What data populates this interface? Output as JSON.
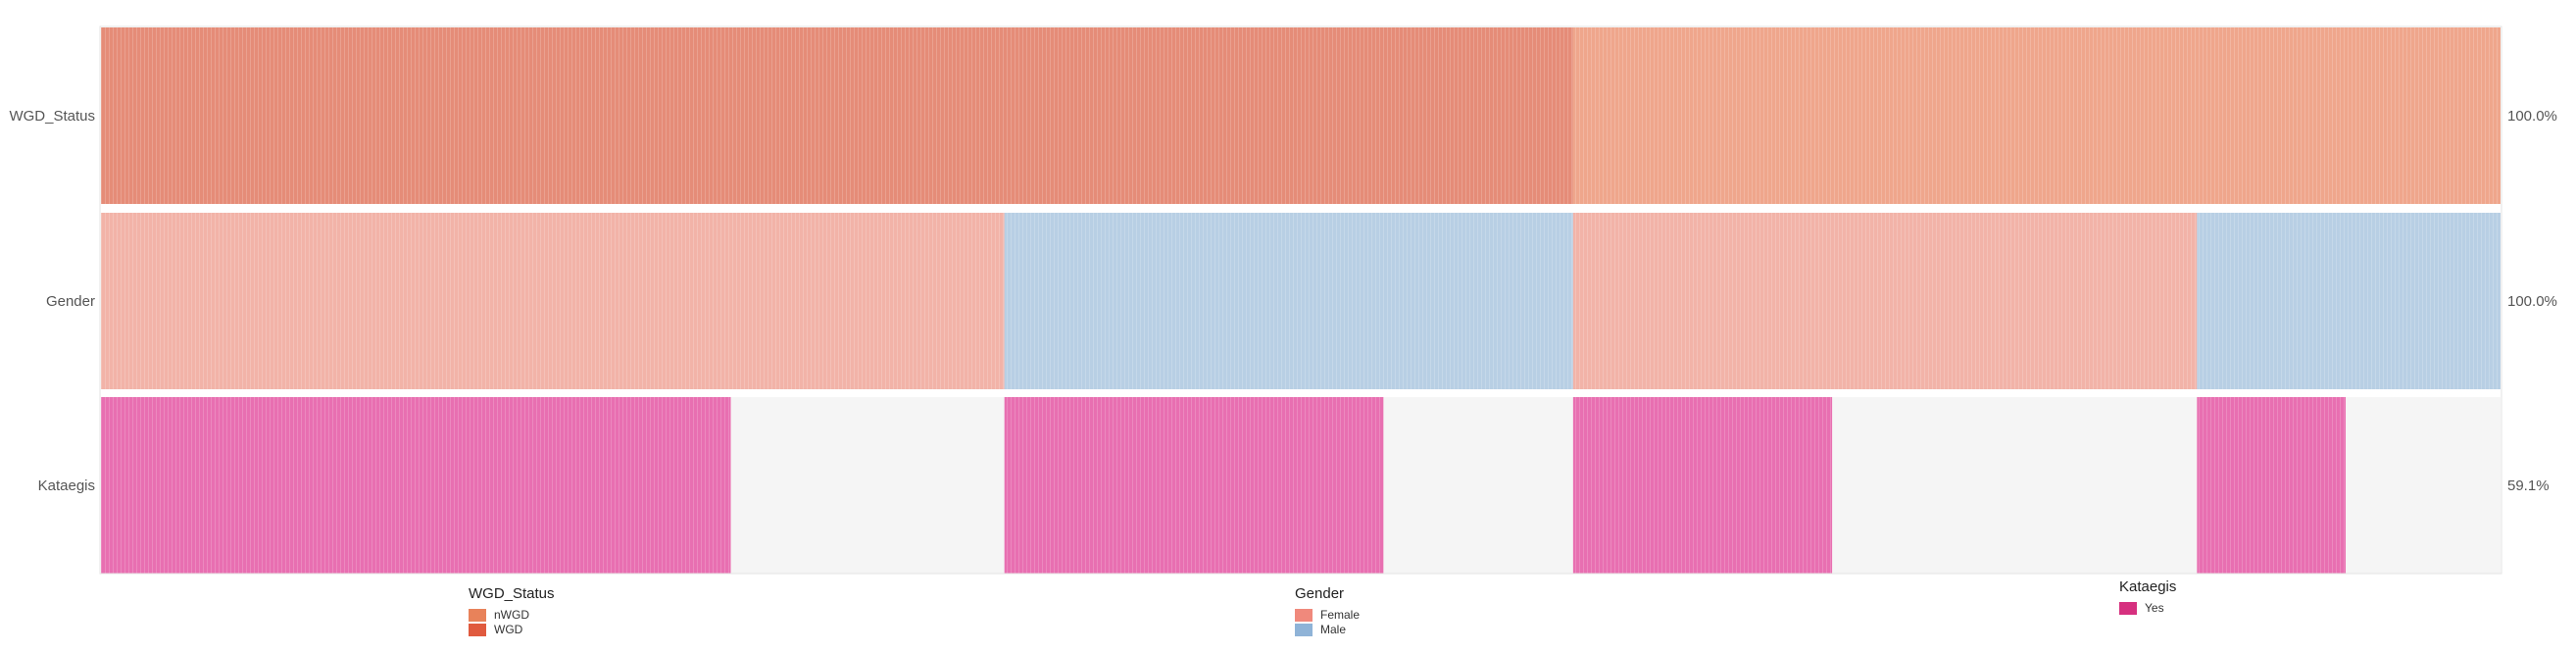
{
  "chart_data": {
    "type": "heatmap",
    "rows": [
      {
        "name": "WGD_Status",
        "percent_label": "100.0%",
        "segments": [
          {
            "category": "WGD",
            "fraction": 0.6135,
            "color": "#e58c78"
          },
          {
            "category": "nWGD",
            "fraction": 0.3865,
            "color": "#efa68c"
          }
        ]
      },
      {
        "name": "Gender",
        "percent_label": "100.0%",
        "segments": [
          {
            "category": "Female",
            "fraction": 0.3765,
            "color": "#f2b3a8"
          },
          {
            "category": "Male",
            "fraction": 0.237,
            "color": "#b8cfe4"
          },
          {
            "category": "Female",
            "fraction": 0.26,
            "color": "#f2b3a8"
          },
          {
            "category": "Male",
            "fraction": 0.1265,
            "color": "#b8cfe4"
          }
        ]
      },
      {
        "name": "Kataegis",
        "percent_label": "59.1%",
        "segments": [
          {
            "category": "Yes",
            "fraction": 0.2625,
            "color": "#e86fb1"
          },
          {
            "category": "None",
            "fraction": 0.114,
            "color": "#f5f5f5"
          },
          {
            "category": "Yes",
            "fraction": 0.158,
            "color": "#e86fb1"
          },
          {
            "category": "None",
            "fraction": 0.079,
            "color": "#f5f5f5"
          },
          {
            "category": "Yes",
            "fraction": 0.108,
            "color": "#e86fb1"
          },
          {
            "category": "None",
            "fraction": 0.152,
            "color": "#f5f5f5"
          },
          {
            "category": "Yes",
            "fraction": 0.062,
            "color": "#e86fb1"
          },
          {
            "category": "None",
            "fraction": 0.0645,
            "color": "#f5f5f5"
          }
        ]
      }
    ],
    "legends": [
      {
        "title": "WGD_Status",
        "items": [
          {
            "label": "nWGD",
            "color": "#e8825a"
          },
          {
            "label": "WGD",
            "color": "#e05a3e"
          }
        ]
      },
      {
        "title": "Gender",
        "items": [
          {
            "label": "Female",
            "color": "#f0897c"
          },
          {
            "label": "Male",
            "color": "#8fb3d7"
          }
        ]
      },
      {
        "title": "Kataegis",
        "items": [
          {
            "label": "Yes",
            "color": "#d6307f"
          }
        ]
      }
    ]
  }
}
